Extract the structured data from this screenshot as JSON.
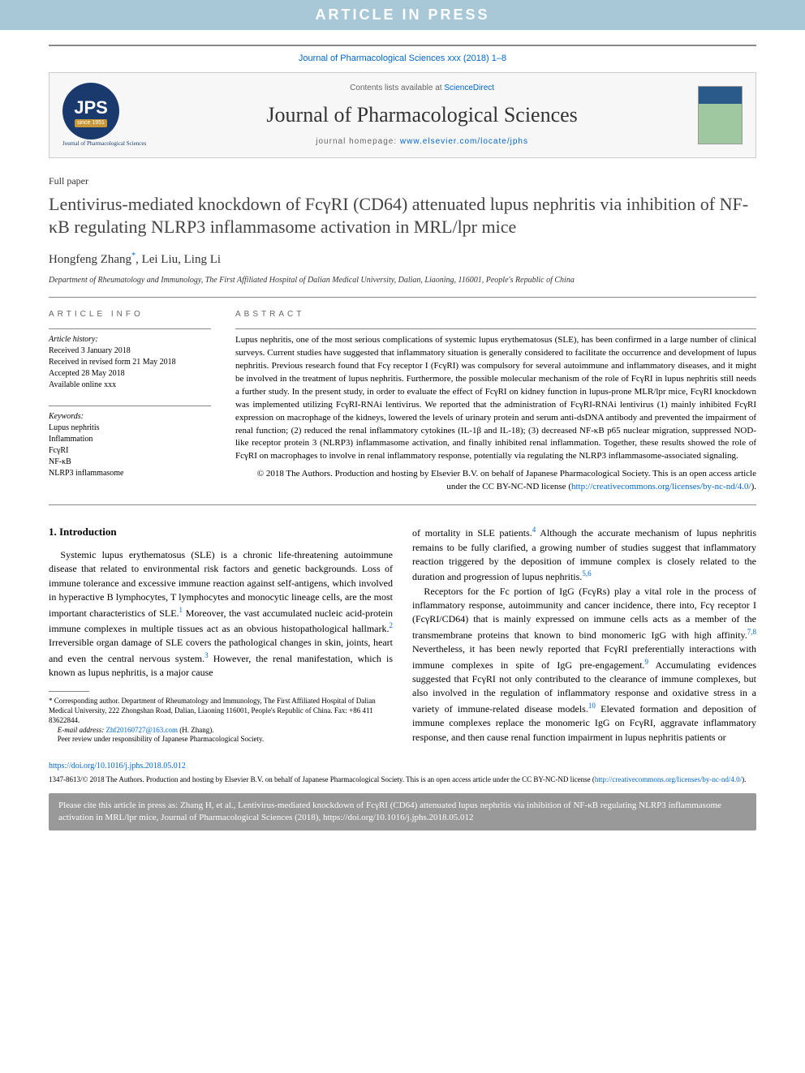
{
  "banner": "ARTICLE IN PRESS",
  "citation_top": "Journal of Pharmacological Sciences xxx (2018) 1–8",
  "header": {
    "logo_main": "JPS",
    "logo_since": "since 1951",
    "logo_sub": "Journal of Pharmacological Sciences",
    "contents_pre": "Contents lists available at ",
    "contents_link": "ScienceDirect",
    "journal_title": "Journal of Pharmacological Sciences",
    "homepage_pre": "journal homepage: ",
    "homepage_link": "www.elsevier.com/locate/jphs"
  },
  "paper_type": "Full paper",
  "title": "Lentivirus-mediated knockdown of FcγRI (CD64) attenuated lupus nephritis via inhibition of NF-κB regulating NLRP3 inflammasome activation in MRL/lpr mice",
  "authors": "Hongfeng Zhang",
  "authors_rest": ", Lei Liu, Ling Li",
  "corr_mark": "*",
  "affiliation": "Department of Rheumatology and Immunology, The First Affiliated Hospital of Dalian Medical University, Dalian, Liaoning, 116001, People's Republic of China",
  "info": {
    "heading": "ARTICLE INFO",
    "history_label": "Article history:",
    "received": "Received 3 January 2018",
    "revised": "Received in revised form 21 May 2018",
    "accepted": "Accepted 28 May 2018",
    "online": "Available online xxx",
    "keywords_label": "Keywords:",
    "kw1": "Lupus nephritis",
    "kw2": "Inflammation",
    "kw3": "FcγRI",
    "kw4": "NF-κB",
    "kw5": "NLRP3 inflammasome"
  },
  "abstract": {
    "heading": "ABSTRACT",
    "text": "Lupus nephritis, one of the most serious complications of systemic lupus erythematosus (SLE), has been confirmed in a large number of clinical surveys. Current studies have suggested that inflammatory situation is generally considered to facilitate the occurrence and development of lupus nephritis. Previous research found that Fcγ receptor I (FcγRI) was compulsory for several autoimmune and inflammatory diseases, and it might be involved in the treatment of lupus nephritis. Furthermore, the possible molecular mechanism of the role of FcγRI in lupus nephritis still needs a further study. In the present study, in order to evaluate the effect of FcγRI on kidney function in lupus-prone MLR/lpr mice, FcγRI knockdown was implemented utilizing FcγRI-RNAi lentivirus. We reported that the administration of FcγRI-RNAi lentivirus (1) mainly inhibited FcγRI expression on macrophage of the kidneys, lowered the levels of urinary protein and serum anti-dsDNA antibody and prevented the impairment of renal function; (2) reduced the renal inflammatory cytokines (IL-1β and IL-18); (3) decreased NF-κB p65 nuclear migration, suppressed NOD-like receptor protein 3 (NLRP3) inflammasome activation, and finally inhibited renal inflammation. Together, these results showed the role of FcγRI on macrophages to involve in renal inflammatory response, potentially via regulating the NLRP3 inflammasome-associated signaling.",
    "copyright": "© 2018 The Authors. Production and hosting by Elsevier B.V. on behalf of Japanese Pharmacological Society. This is an open access article under the CC BY-NC-ND license (",
    "license_url": "http://creativecommons.org/licenses/by-nc-nd/4.0/",
    "copyright_end": ")."
  },
  "intro": {
    "heading": "1. Introduction",
    "p1a": "Systemic lupus erythematosus (SLE) is a chronic life-threatening autoimmune disease that related to environmental risk factors and genetic backgrounds. Loss of immune tolerance and excessive immune reaction against self-antigens, which involved in hyperactive B lymphocytes, T lymphocytes and monocytic lineage cells, are the most important characteristics of SLE.",
    "p1b": " Moreover, the vast accumulated nucleic acid-protein immune complexes in multiple tissues act as an obvious histopathological hallmark.",
    "p1c": " Irreversible organ damage of SLE covers the pathological changes in skin, joints, heart and even the central nervous system.",
    "p1d": " However, the renal manifestation, which is known as lupus nephritis, is a major cause",
    "p2a": "of mortality in SLE patients.",
    "p2b": " Although the accurate mechanism of lupus nephritis remains to be fully clarified, a growing number of studies suggest that inflammatory reaction triggered by the deposition of immune complex is closely related to the duration and progression of lupus nephritis.",
    "p3a": "Receptors for the Fc portion of IgG (FcγRs) play a vital role in the process of inflammatory response, autoimmunity and cancer incidence, there into, Fcγ receptor I (FcγRI/CD64) that is mainly expressed on immune cells acts as a member of the transmembrane proteins that known to bind monomeric IgG with high affinity.",
    "p3b": " Nevertheless, it has been newly reported that FcγRI preferentially interactions with immune complexes in spite of IgG pre-engagement.",
    "p3c": " Accumulating evidences suggested that FcγRI not only contributed to the clearance of immune complexes, but also involved in the regulation of inflammatory response and oxidative stress in a variety of immune-related disease models.",
    "p3d": " Elevated formation and deposition of immune complexes replace the monomeric IgG on FcγRI, aggravate inflammatory response, and then cause renal function impairment in lupus nephritis patients or",
    "ref1": "1",
    "ref2": "2",
    "ref3": "3",
    "ref4": "4",
    "ref56": "5,6",
    "ref78": "7,8",
    "ref9": "9",
    "ref10": "10"
  },
  "footnote": {
    "corr": "* Corresponding author. Department of Rheumatology and Immunology, The First Affiliated Hospital of Dalian Medical University, 222 Zhongshan Road, Dalian, Liaoning 116001, People's Republic of China. Fax: +86 411 83622844.",
    "email_label": "E-mail address: ",
    "email": "Zhf20160727@163.com",
    "email_suffix": " (H. Zhang).",
    "peer": "Peer review under responsibility of Japanese Pharmacological Society."
  },
  "doi": "https://doi.org/10.1016/j.jphs.2018.05.012",
  "license_bottom": "1347-8613/© 2018 The Authors. Production and hosting by Elsevier B.V. on behalf of Japanese Pharmacological Society. This is an open access article under the CC BY-NC-ND license (",
  "license_bottom_url": "http://creativecommons.org/licenses/by-nc-nd/4.0/",
  "license_bottom_end": ").",
  "cite_box": "Please cite this article in press as: Zhang H, et al., Lentivirus-mediated knockdown of FcγRI (CD64) attenuated lupus nephritis via inhibition of NF-κB regulating NLRP3 inflammasome activation in MRL/lpr mice, Journal of Pharmacological Sciences (2018), https://doi.org/10.1016/j.jphs.2018.05.012"
}
